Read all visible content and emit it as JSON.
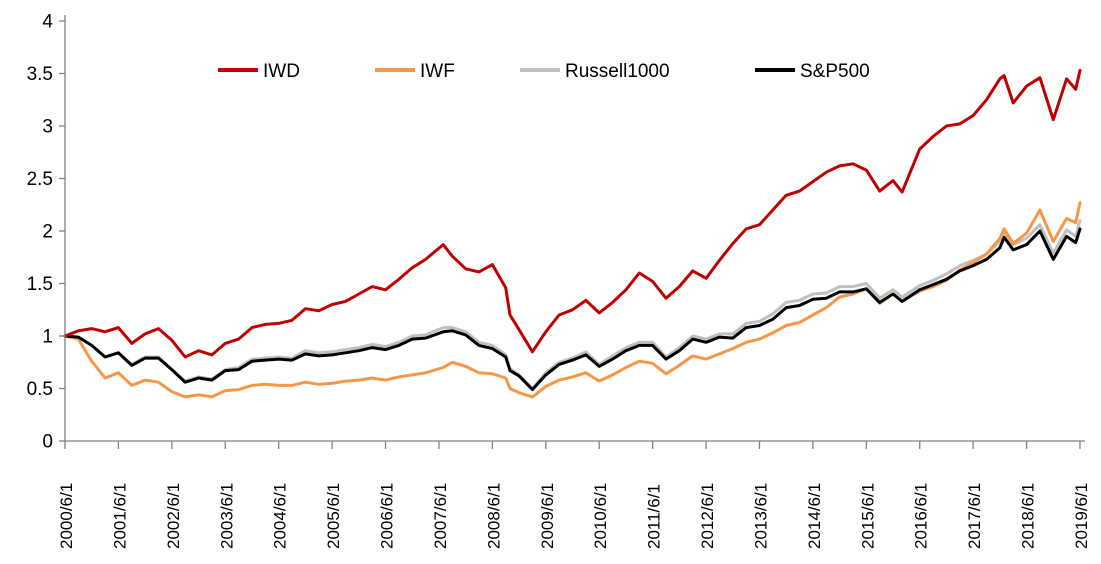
{
  "chart_data": {
    "type": "line",
    "title": "",
    "xlabel": "",
    "ylabel": "",
    "xlim": [
      2000.5,
      2019.5
    ],
    "ylim": [
      0,
      4
    ],
    "grid": false,
    "legend_position": "top",
    "axis_color": "#7f7f7f",
    "text_color": "#000000",
    "y_ticks": [
      0,
      0.5,
      1,
      1.5,
      2,
      2.5,
      3,
      3.5,
      4
    ],
    "y_tick_labels": [
      "0",
      "0.5",
      "1",
      "1.5",
      "2",
      "2.5",
      "3",
      "3.5",
      "4"
    ],
    "x_tick_positions": [
      2000.5,
      2001.5,
      2002.5,
      2003.5,
      2004.5,
      2005.5,
      2006.5,
      2007.5,
      2008.5,
      2009.5,
      2010.5,
      2011.5,
      2012.5,
      2013.5,
      2014.5,
      2015.5,
      2016.5,
      2017.5,
      2018.5,
      2019.5
    ],
    "x_tick_labels": [
      "2000/6/1",
      "2001/6/1",
      "2002/6/1",
      "2003/6/1",
      "2004/6/1",
      "2005/6/1",
      "2006/6/1",
      "2007/6/1",
      "2008/6/1",
      "2009/6/1",
      "2010/6/1",
      "2011/6/1",
      "2012/6/1",
      "2013/6/1",
      "2014/6/1",
      "2015/6/1",
      "2016/6/1",
      "2017/6/1",
      "2018/6/1",
      "2019/6/1"
    ],
    "x": [
      2000.5,
      2000.75,
      2001,
      2001.25,
      2001.5,
      2001.75,
      2002,
      2002.25,
      2002.5,
      2002.75,
      2003,
      2003.25,
      2003.5,
      2003.75,
      2004,
      2004.25,
      2004.5,
      2004.75,
      2005,
      2005.25,
      2005.5,
      2005.75,
      2006,
      2006.25,
      2006.5,
      2006.75,
      2007,
      2007.25,
      2007.58,
      2007.75,
      2008,
      2008.25,
      2008.5,
      2008.75,
      2008.83,
      2009,
      2009.25,
      2009.5,
      2009.75,
      2010,
      2010.25,
      2010.5,
      2010.75,
      2011,
      2011.25,
      2011.5,
      2011.75,
      2012,
      2012.25,
      2012.5,
      2012.75,
      2013,
      2013.25,
      2013.5,
      2013.75,
      2014,
      2014.25,
      2014.5,
      2014.75,
      2015,
      2015.25,
      2015.5,
      2015.75,
      2016,
      2016.17,
      2016.5,
      2016.75,
      2017,
      2017.25,
      2017.5,
      2017.75,
      2018,
      2018.08,
      2018.25,
      2018.5,
      2018.75,
      2019,
      2019.25,
      2019.42,
      2019.5
    ],
    "series": [
      {
        "name": "IWD",
        "color": "#C00000",
        "values": [
          1.0,
          1.05,
          1.07,
          1.04,
          1.08,
          0.93,
          1.02,
          1.07,
          0.96,
          0.8,
          0.86,
          0.82,
          0.93,
          0.97,
          1.08,
          1.11,
          1.12,
          1.15,
          1.26,
          1.24,
          1.3,
          1.33,
          1.4,
          1.47,
          1.44,
          1.54,
          1.65,
          1.73,
          1.87,
          1.76,
          1.64,
          1.61,
          1.68,
          1.46,
          1.2,
          1.06,
          0.85,
          1.04,
          1.2,
          1.25,
          1.34,
          1.22,
          1.32,
          1.44,
          1.6,
          1.52,
          1.36,
          1.47,
          1.62,
          1.55,
          1.72,
          1.88,
          2.02,
          2.06,
          2.2,
          2.34,
          2.38,
          2.47,
          2.56,
          2.62,
          2.64,
          2.58,
          2.38,
          2.48,
          2.37,
          2.78,
          2.9,
          3.0,
          3.02,
          3.1,
          3.25,
          3.45,
          3.48,
          3.22,
          3.38,
          3.46,
          3.06,
          3.45,
          3.35,
          3.53
        ]
      },
      {
        "name": "IWF",
        "color": "#F79646",
        "values": [
          1.0,
          0.97,
          0.76,
          0.6,
          0.65,
          0.53,
          0.58,
          0.56,
          0.47,
          0.42,
          0.44,
          0.42,
          0.48,
          0.49,
          0.53,
          0.54,
          0.53,
          0.53,
          0.56,
          0.54,
          0.55,
          0.57,
          0.58,
          0.6,
          0.58,
          0.61,
          0.63,
          0.65,
          0.7,
          0.75,
          0.71,
          0.65,
          0.64,
          0.6,
          0.5,
          0.46,
          0.42,
          0.52,
          0.58,
          0.61,
          0.65,
          0.57,
          0.63,
          0.7,
          0.76,
          0.74,
          0.64,
          0.72,
          0.81,
          0.78,
          0.83,
          0.88,
          0.94,
          0.97,
          1.03,
          1.1,
          1.13,
          1.2,
          1.27,
          1.37,
          1.4,
          1.45,
          1.31,
          1.4,
          1.33,
          1.43,
          1.47,
          1.53,
          1.63,
          1.7,
          1.78,
          1.93,
          2.02,
          1.88,
          1.98,
          2.2,
          1.9,
          2.12,
          2.08,
          2.27
        ]
      },
      {
        "name": "Russell1000",
        "color": "#BFBFBF",
        "values": [
          1.0,
          0.99,
          0.91,
          0.8,
          0.84,
          0.73,
          0.8,
          0.8,
          0.68,
          0.57,
          0.61,
          0.59,
          0.68,
          0.7,
          0.78,
          0.79,
          0.8,
          0.79,
          0.86,
          0.84,
          0.85,
          0.87,
          0.89,
          0.92,
          0.9,
          0.94,
          1.0,
          1.01,
          1.08,
          1.08,
          1.04,
          0.94,
          0.91,
          0.82,
          0.69,
          0.63,
          0.5,
          0.65,
          0.75,
          0.79,
          0.85,
          0.73,
          0.81,
          0.89,
          0.94,
          0.94,
          0.8,
          0.89,
          1.0,
          0.97,
          1.02,
          1.02,
          1.12,
          1.14,
          1.21,
          1.32,
          1.34,
          1.4,
          1.41,
          1.47,
          1.47,
          1.5,
          1.36,
          1.44,
          1.37,
          1.48,
          1.53,
          1.59,
          1.67,
          1.72,
          1.78,
          1.9,
          1.99,
          1.87,
          1.93,
          2.06,
          1.79,
          2.01,
          1.95,
          2.1
        ]
      },
      {
        "name": "S&P500",
        "color": "#000000",
        "values": [
          1.0,
          0.99,
          0.91,
          0.8,
          0.84,
          0.72,
          0.79,
          0.79,
          0.68,
          0.56,
          0.6,
          0.58,
          0.67,
          0.68,
          0.76,
          0.77,
          0.78,
          0.77,
          0.83,
          0.81,
          0.82,
          0.84,
          0.86,
          0.89,
          0.87,
          0.91,
          0.97,
          0.98,
          1.04,
          1.05,
          1.01,
          0.91,
          0.88,
          0.8,
          0.67,
          0.62,
          0.49,
          0.63,
          0.73,
          0.77,
          0.82,
          0.71,
          0.78,
          0.86,
          0.91,
          0.91,
          0.78,
          0.86,
          0.97,
          0.94,
          0.99,
          0.98,
          1.08,
          1.1,
          1.16,
          1.27,
          1.29,
          1.35,
          1.36,
          1.42,
          1.42,
          1.45,
          1.32,
          1.4,
          1.33,
          1.44,
          1.49,
          1.54,
          1.62,
          1.67,
          1.73,
          1.84,
          1.94,
          1.82,
          1.87,
          2.0,
          1.73,
          1.95,
          1.89,
          2.02
        ]
      }
    ],
    "legend_order": [
      "IWD",
      "IWF",
      "Russell1000",
      "S&P500"
    ],
    "draw_order": [
      "Russell1000",
      "IWF",
      "S&P500",
      "IWD"
    ]
  }
}
